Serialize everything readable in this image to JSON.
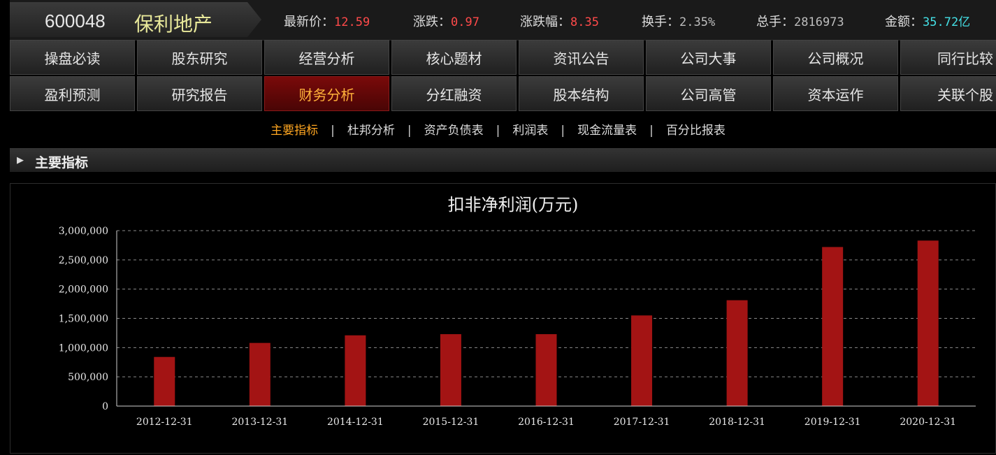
{
  "header": {
    "code": "600048",
    "name": "保利地产",
    "quotes": [
      {
        "label": "最新价：",
        "value": "12.59",
        "color": "#ff4a4a"
      },
      {
        "label": "涨跌：",
        "value": "0.97",
        "color": "#ff4a4a"
      },
      {
        "label": "涨跌幅：",
        "value": "8.35",
        "color": "#ff4a4a"
      },
      {
        "label": "换手：",
        "value": "2.35%",
        "color": "#bdbdbd"
      },
      {
        "label": "总手：",
        "value": "2816973",
        "color": "#bdbdbd"
      },
      {
        "label": "金额：",
        "value": "35.72亿",
        "color": "#44e0e6"
      }
    ]
  },
  "nav": {
    "row1": [
      "操盘必读",
      "股东研究",
      "经营分析",
      "核心题材",
      "资讯公告",
      "公司大事",
      "公司概况",
      "同行比较"
    ],
    "row2": [
      "盈利预测",
      "研究报告",
      "财务分析",
      "分红融资",
      "股本结构",
      "公司高管",
      "资本运作",
      "关联个股"
    ],
    "active": "财务分析"
  },
  "subtabs": {
    "items": [
      "主要指标",
      "杜邦分析",
      "资产负债表",
      "利润表",
      "现金流量表",
      "百分比报表"
    ],
    "separator": "|",
    "active": "主要指标"
  },
  "section": {
    "title": "主要指标"
  },
  "chart_data": {
    "type": "bar",
    "title": "扣非净利润(万元)",
    "xlabel": "",
    "ylabel": "",
    "categories": [
      "2012-12-31",
      "2013-12-31",
      "2014-12-31",
      "2015-12-31",
      "2016-12-31",
      "2017-12-31",
      "2018-12-31",
      "2019-12-31",
      "2020-12-31"
    ],
    "values": [
      840000,
      1080000,
      1210000,
      1230000,
      1230000,
      1550000,
      1810000,
      2720000,
      2830000
    ],
    "ylim": [
      0,
      3000000
    ],
    "yticks": [
      0,
      500000,
      1000000,
      1500000,
      2000000,
      2500000,
      3000000
    ],
    "ytick_labels": [
      "0",
      "500,000",
      "1,000,000",
      "1,500,000",
      "2,000,000",
      "2,500,000",
      "3,000,000"
    ],
    "grid": true,
    "bar_color": "#a31414"
  }
}
